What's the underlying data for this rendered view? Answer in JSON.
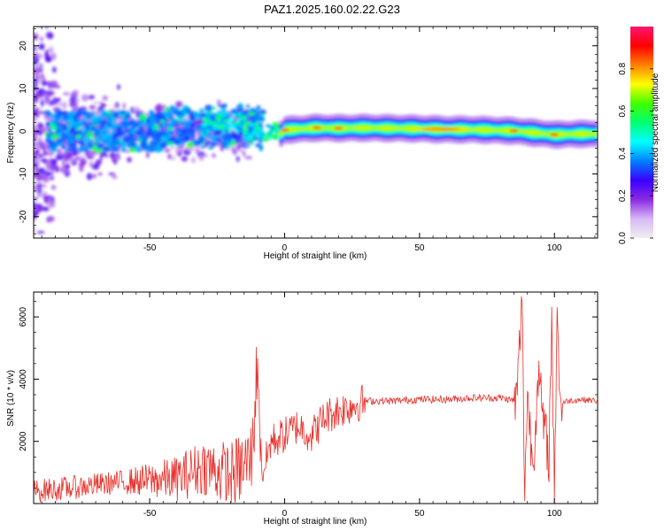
{
  "title": "PAZ1.2025.160.02.22.G23",
  "chart_data": [
    {
      "type": "heatmap",
      "xlabel": "Height of straight line (km)",
      "ylabel": "Frequency (Hz)",
      "xlim": [
        -93,
        116
      ],
      "ylim": [
        -25,
        24.5
      ],
      "xticks": [
        -50,
        0,
        50,
        100
      ],
      "xtick_labels": [
        "-50",
        "0",
        "50",
        "100"
      ],
      "yticks": [
        -20,
        -10,
        0,
        10,
        20
      ],
      "ytick_labels": [
        "-20",
        "-10",
        "0",
        "10",
        "20"
      ],
      "colorbar": {
        "label": "Normalized spectral amplitude",
        "range": [
          0,
          1
        ],
        "ticks": [
          0.0,
          0.2,
          0.4,
          0.6,
          0.8
        ],
        "tick_labels": [
          "0.0",
          "0.2",
          "0.4",
          "0.6",
          "0.8"
        ],
        "colormap": [
          "#f0f0f0",
          "#d7b8f5",
          "#8a2be2",
          "#3a00ff",
          "#0080ff",
          "#00ffff",
          "#00ff70",
          "#40ff00",
          "#ffff00",
          "#ff8000",
          "#ff0000",
          "#ff1470"
        ]
      },
      "ridge": [
        {
          "x": 0,
          "freq": 0.3,
          "amp": 0.9
        },
        {
          "x": 12,
          "freq": 0.8,
          "amp": 0.9
        },
        {
          "x": 20,
          "freq": 0.7,
          "amp": 0.85
        },
        {
          "x": 30,
          "freq": 0.8,
          "amp": 0.6
        },
        {
          "x": 50,
          "freq": 0.6,
          "amp": 0.7
        },
        {
          "x": 60,
          "freq": 0.4,
          "amp": 0.9
        },
        {
          "x": 70,
          "freq": 0.4,
          "amp": 0.7
        },
        {
          "x": 85,
          "freq": 0.1,
          "amp": 0.85
        },
        {
          "x": 100,
          "freq": -0.8,
          "amp": 0.85
        },
        {
          "x": 110,
          "freq": -0.6,
          "amp": 0.5
        }
      ],
      "grid": false
    },
    {
      "type": "line",
      "xlabel": "Height of straight line (km)",
      "ylabel": "SNR (10 * v/v)",
      "xlim": [
        -93,
        116
      ],
      "ylim": [
        0,
        6800
      ],
      "xticks": [
        -50,
        0,
        50,
        100
      ],
      "xtick_labels": [
        "-50",
        "0",
        "50",
        "100"
      ],
      "yticks": [
        2000,
        4000,
        6000
      ],
      "ytick_labels": [
        "2000",
        "4000",
        "6000"
      ],
      "line_color": "#e8302a",
      "series": [
        {
          "x": [
            -93,
            -80,
            -60,
            -40,
            -30,
            -20,
            -15,
            -12,
            -10,
            -9,
            -8,
            -5,
            0,
            5,
            10,
            15,
            20,
            30,
            40,
            50,
            60,
            70,
            80,
            86,
            88,
            89,
            90,
            92,
            94,
            96,
            98,
            99,
            100,
            101,
            102,
            105,
            110,
            116
          ],
          "y": [
            400,
            500,
            700,
            800,
            1200,
            900,
            1200,
            1500,
            4800,
            1800,
            1000,
            2000,
            2200,
            2500,
            2200,
            2800,
            3000,
            3300,
            3300,
            3350,
            3350,
            3400,
            3400,
            3300,
            6600,
            500,
            3500,
            1200,
            4200,
            2500,
            1500,
            6000,
            100,
            6700,
            3200,
            3300,
            3350,
            3300
          ]
        }
      ],
      "grid": false
    }
  ]
}
